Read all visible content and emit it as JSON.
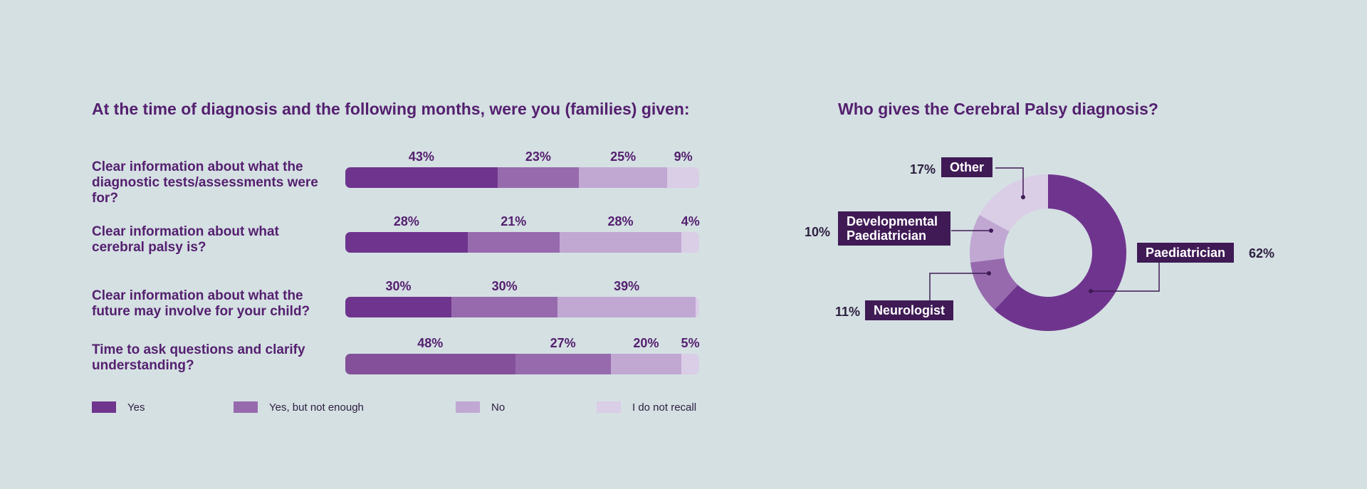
{
  "chart_data": [
    {
      "type": "bar",
      "stacked": true,
      "orientation": "horizontal",
      "title": "At the time of diagnosis and the following months, were you (families) given:",
      "categories": [
        "Clear information about what the diagnostic tests/assessments were for?",
        "Clear information about what cerebral palsy is?",
        "Clear information about what the future may involve for your child?",
        "Time to ask questions and clarify understanding?"
      ],
      "series": [
        {
          "name": "Yes",
          "values": [
            43,
            28,
            30,
            48
          ],
          "labels": [
            "43%",
            "28%",
            "30%",
            "48%"
          ]
        },
        {
          "name": "Yes, but not enough",
          "values": [
            23,
            21,
            30,
            27
          ],
          "labels": [
            "23%",
            "21%",
            "30%",
            "27%"
          ]
        },
        {
          "name": "No",
          "values": [
            25,
            28,
            39,
            20
          ],
          "labels": [
            "25%",
            "28%",
            "39%",
            "20%"
          ]
        },
        {
          "name": "I do not recall",
          "values": [
            9,
            4,
            1,
            5
          ],
          "labels": [
            "9%",
            "4%",
            "",
            "5%"
          ]
        }
      ],
      "colors": [
        "#6f358e",
        "#976aae",
        "#c0a8d3",
        "#dacde6"
      ],
      "row_overrides": {
        "3": {
          "Yes": "#845099"
        }
      },
      "legend_position": "bottom",
      "xlim": [
        0,
        100
      ]
    },
    {
      "type": "pie",
      "donut": true,
      "title": "Who gives the Cerebral Palsy diagnosis?",
      "slices": [
        {
          "name": "Paediatrician",
          "value": 62,
          "label": "62%",
          "color": "#6f358e"
        },
        {
          "name": "Neurologist",
          "value": 11,
          "label": "11%",
          "color": "#976aae"
        },
        {
          "name": "Developmental Paediatrician",
          "value": 10,
          "label": "10%",
          "color": "#c0a8d3"
        },
        {
          "name": "Other",
          "value": 17,
          "label": "17%",
          "color": "#dacde6"
        }
      ],
      "start_angle": "12 o'clock, clockwise"
    }
  ]
}
